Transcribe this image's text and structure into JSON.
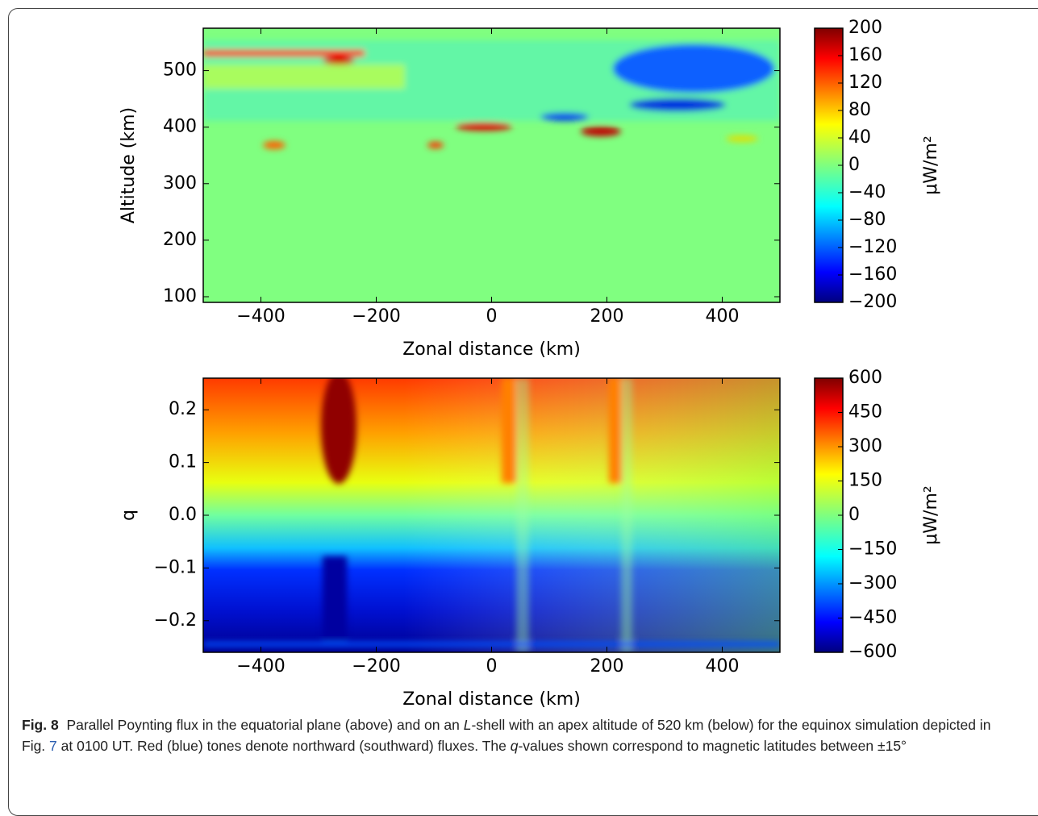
{
  "chart_data": [
    {
      "type": "heatmap",
      "xlabel": "Zonal distance (km)",
      "ylabel": "Altitude (km)",
      "xlim": [
        -500,
        500
      ],
      "xticks": [
        {
          "value": -400,
          "label": "−400"
        },
        {
          "value": -200,
          "label": "−200"
        },
        0,
        200,
        400
      ],
      "ylim": [
        90,
        575
      ],
      "yticks": [
        100,
        200,
        300,
        400,
        500
      ],
      "colorbar": {
        "label": "μW/m²",
        "lim": [
          -200,
          200
        ],
        "ticks": [
          {
            "value": -200,
            "label": "−200"
          },
          {
            "value": -160,
            "label": "−160"
          },
          {
            "value": -120,
            "label": "−120"
          },
          {
            "value": -80,
            "label": "−80"
          },
          {
            "value": -40,
            "label": "−40"
          },
          0,
          40,
          80,
          120,
          160,
          200
        ]
      }
    },
    {
      "type": "heatmap",
      "xlabel": "Zonal distance (km)",
      "ylabel": "q",
      "xlim": [
        -500,
        500
      ],
      "xticks": [
        {
          "value": -400,
          "label": "−400"
        },
        {
          "value": -200,
          "label": "−200"
        },
        0,
        200,
        400
      ],
      "ylim": [
        -0.26,
        0.26
      ],
      "yticks": [
        {
          "value": -0.2,
          "label": "−0.2"
        },
        {
          "value": -0.1,
          "label": "−0.1"
        },
        {
          "value": 0,
          "label": "0.0"
        },
        0.1,
        0.2
      ],
      "colorbar": {
        "label": "μW/m²",
        "lim": [
          -600,
          600
        ],
        "ticks": [
          {
            "value": -600,
            "label": "−600"
          },
          {
            "value": -450,
            "label": "−450"
          },
          {
            "value": -300,
            "label": "−300"
          },
          {
            "value": -150,
            "label": "−150"
          },
          0,
          150,
          300,
          450,
          600
        ]
      }
    }
  ],
  "caption": {
    "label": "Fig. 8",
    "parts": [
      "Parallel Poynting flux in the equatorial plane (above) and on an ",
      "L",
      "-shell with an apex altitude of 520 km (below) for the equinox simulation depicted in Fig. ",
      "7",
      " at 0100 UT. Red (blue) tones denote northward (southward) fluxes. The ",
      "q",
      "-values shown correspond to magnetic latitudes between ±15°"
    ]
  }
}
